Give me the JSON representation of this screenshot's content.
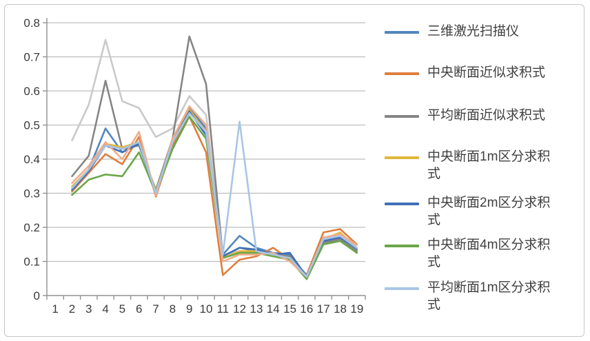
{
  "chart_data": {
    "type": "line",
    "title": "",
    "xlabel": "",
    "ylabel": "",
    "x_categories": [
      "1",
      "2",
      "3",
      "4",
      "5",
      "6",
      "7",
      "8",
      "9",
      "10",
      "11",
      "12",
      "13",
      "14",
      "15",
      "16",
      "17",
      "18",
      "19"
    ],
    "x_first_data_category": 2,
    "ylim": [
      0,
      0.8
    ],
    "y_tick_labels": [
      "0.8",
      "0.7",
      "0.6",
      "0.5",
      "0.4",
      "0.3",
      "0.2",
      "0.1",
      "0"
    ],
    "grid": "horizontal-on",
    "legend_position": "right",
    "series": [
      {
        "name": "",
        "color": "#c9c9c9",
        "in_legend": false,
        "values": [
          0.455,
          0.56,
          0.75,
          0.57,
          0.55,
          0.465,
          0.49,
          0.585,
          0.53,
          0.12,
          0.13,
          0.125,
          0.12,
          0.11,
          0.06,
          0.16,
          0.17,
          0.13
        ]
      },
      {
        "name": "三维激光扫描仪",
        "color": "#5186be",
        "in_legend": true,
        "values": [
          0.31,
          0.37,
          0.49,
          0.42,
          0.45,
          0.3,
          0.46,
          0.55,
          0.49,
          0.12,
          0.175,
          0.14,
          0.125,
          0.12,
          0.055,
          0.16,
          0.17,
          0.135
        ]
      },
      {
        "name": "中央断面近似求积式",
        "color": "#de7e3e",
        "in_legend": true,
        "values": [
          0.305,
          0.36,
          0.415,
          0.385,
          0.465,
          0.29,
          0.44,
          0.525,
          0.42,
          0.06,
          0.105,
          0.115,
          0.14,
          0.105,
          0.06,
          0.185,
          0.195,
          0.15
        ]
      },
      {
        "name": "平均断面近似求积式",
        "color": "#858585",
        "in_legend": true,
        "values": [
          0.35,
          0.41,
          0.63,
          0.43,
          0.44,
          0.31,
          0.46,
          0.76,
          0.62,
          0.115,
          0.14,
          0.13,
          0.12,
          0.115,
          0.06,
          0.155,
          0.165,
          0.13
        ]
      },
      {
        "name": "中央断面1m区分求积式",
        "color": "#e0b63c",
        "in_legend": true,
        "values": [
          0.32,
          0.37,
          0.445,
          0.435,
          0.45,
          0.305,
          0.45,
          0.545,
          0.48,
          0.11,
          0.13,
          0.13,
          0.12,
          0.11,
          0.055,
          0.165,
          0.185,
          0.14
        ]
      },
      {
        "name": "中央断面2m区分求积式",
        "color": "#4070b8",
        "in_legend": true,
        "values": [
          0.31,
          0.365,
          0.44,
          0.42,
          0.445,
          0.3,
          0.45,
          0.54,
          0.47,
          0.115,
          0.14,
          0.135,
          0.12,
          0.125,
          0.055,
          0.16,
          0.17,
          0.14
        ]
      },
      {
        "name": "中央断面4m区分求积式",
        "color": "#6ba647",
        "in_legend": true,
        "values": [
          0.295,
          0.34,
          0.355,
          0.35,
          0.42,
          0.3,
          0.43,
          0.525,
          0.46,
          0.11,
          0.125,
          0.125,
          0.115,
          0.105,
          0.048,
          0.15,
          0.16,
          0.125
        ]
      },
      {
        "name": "",
        "color": "#efad89",
        "in_legend": false,
        "values": [
          0.33,
          0.38,
          0.45,
          0.4,
          0.48,
          0.293,
          0.46,
          0.555,
          0.5,
          0.1,
          0.12,
          0.12,
          0.125,
          0.1,
          0.055,
          0.17,
          0.18,
          0.148
        ]
      },
      {
        "name": "平均断面1m区分求积式",
        "color": "#a9c5e6",
        "in_legend": true,
        "values": [
          0.315,
          0.37,
          0.44,
          0.43,
          0.45,
          0.3,
          0.45,
          0.535,
          0.48,
          0.12,
          0.51,
          0.13,
          0.12,
          0.11,
          0.055,
          0.165,
          0.175,
          0.14
        ]
      }
    ],
    "style": {
      "grid_color": "#bdbdbd",
      "axis_color": "#909090",
      "tick_label_color": "#3a3a3a",
      "frame_border_color": "#c6c6c6",
      "background": "#ffffff"
    }
  }
}
